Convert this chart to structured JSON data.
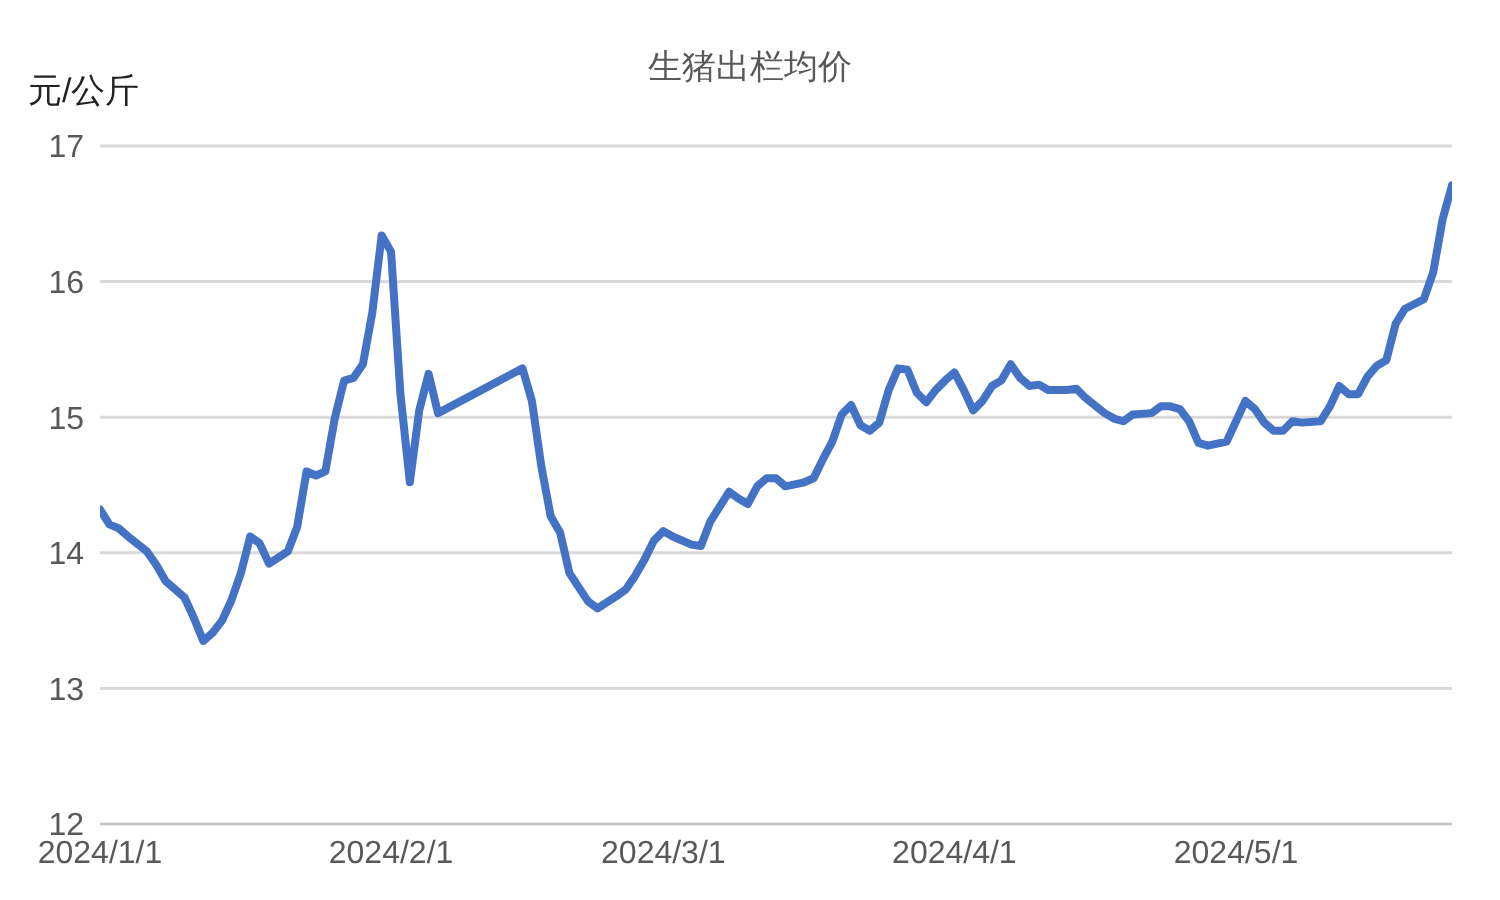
{
  "chart_data": {
    "type": "line",
    "title": "生猪出栏均价",
    "ylabel": "元/公斤",
    "x": [
      "2024-01-01",
      "2024-01-02",
      "2024-01-03",
      "2024-01-04",
      "2024-01-06",
      "2024-01-07",
      "2024-01-08",
      "2024-01-10",
      "2024-01-11",
      "2024-01-12",
      "2024-01-13",
      "2024-01-14",
      "2024-01-15",
      "2024-01-16",
      "2024-01-17",
      "2024-01-18",
      "2024-01-19",
      "2024-01-21",
      "2024-01-22",
      "2024-01-23",
      "2024-01-24",
      "2024-01-25",
      "2024-01-26",
      "2024-01-27",
      "2024-01-28",
      "2024-01-29",
      "2024-01-30",
      "2024-01-31",
      "2024-02-01",
      "2024-02-02",
      "2024-02-03",
      "2024-02-04",
      "2024-02-05",
      "2024-02-06",
      "2024-02-15",
      "2024-02-16",
      "2024-02-17",
      "2024-02-18",
      "2024-02-19",
      "2024-02-20",
      "2024-02-22",
      "2024-02-23",
      "2024-02-25",
      "2024-02-26",
      "2024-02-27",
      "2024-02-28",
      "2024-02-29",
      "2024-03-01",
      "2024-03-02",
      "2024-03-04",
      "2024-03-05",
      "2024-03-06",
      "2024-03-07",
      "2024-03-08",
      "2024-03-09",
      "2024-03-10",
      "2024-03-11",
      "2024-03-12",
      "2024-03-13",
      "2024-03-14",
      "2024-03-16",
      "2024-03-17",
      "2024-03-18",
      "2024-03-19",
      "2024-03-20",
      "2024-03-21",
      "2024-03-22",
      "2024-03-23",
      "2024-03-24",
      "2024-03-25",
      "2024-03-26",
      "2024-03-27",
      "2024-03-28",
      "2024-03-29",
      "2024-03-30",
      "2024-03-31",
      "2024-04-01",
      "2024-04-02",
      "2024-04-03",
      "2024-04-04",
      "2024-04-05",
      "2024-04-06",
      "2024-04-07",
      "2024-04-08",
      "2024-04-09",
      "2024-04-10",
      "2024-04-11",
      "2024-04-13",
      "2024-04-14",
      "2024-04-15",
      "2024-04-17",
      "2024-04-18",
      "2024-04-19",
      "2024-04-20",
      "2024-04-22",
      "2024-04-23",
      "2024-04-24",
      "2024-04-25",
      "2024-04-26",
      "2024-04-27",
      "2024-04-28",
      "2024-04-30",
      "2024-05-01",
      "2024-05-02",
      "2024-05-03",
      "2024-05-04",
      "2024-05-05",
      "2024-05-06",
      "2024-05-07",
      "2024-05-08",
      "2024-05-10",
      "2024-05-11",
      "2024-05-12",
      "2024-05-13",
      "2024-05-14",
      "2024-05-15",
      "2024-05-16",
      "2024-05-17",
      "2024-05-18",
      "2024-05-19",
      "2024-05-21",
      "2024-05-22",
      "2024-05-23",
      "2024-05-24"
    ],
    "series": [
      {
        "color": "#4472c4",
        "values": [
          14.32,
          14.21,
          14.18,
          14.12,
          14.01,
          13.91,
          13.79,
          13.67,
          13.52,
          13.35,
          13.41,
          13.5,
          13.65,
          13.85,
          14.12,
          14.07,
          13.92,
          14.01,
          14.19,
          14.6,
          14.57,
          14.6,
          14.99,
          15.27,
          15.29,
          15.39,
          15.77,
          16.34,
          16.22,
          15.17,
          14.52,
          15.05,
          15.32,
          15.03,
          15.36,
          15.12,
          14.64,
          14.27,
          14.15,
          13.85,
          13.64,
          13.59,
          13.68,
          13.73,
          13.83,
          13.95,
          14.09,
          14.16,
          14.12,
          14.06,
          14.05,
          14.23,
          14.34,
          14.45,
          14.4,
          14.36,
          14.49,
          14.55,
          14.55,
          14.49,
          14.52,
          14.55,
          14.69,
          14.82,
          15.02,
          15.09,
          14.94,
          14.9,
          14.96,
          15.2,
          15.36,
          15.35,
          15.18,
          15.11,
          15.2,
          15.27,
          15.33,
          15.2,
          15.05,
          15.12,
          15.23,
          15.27,
          15.39,
          15.29,
          15.23,
          15.24,
          15.2,
          15.2,
          15.21,
          15.14,
          15.03,
          14.99,
          14.97,
          15.02,
          15.03,
          15.08,
          15.08,
          15.06,
          14.97,
          14.81,
          14.79,
          14.82,
          14.97,
          15.12,
          15.06,
          14.96,
          14.9,
          14.9,
          14.97,
          14.96,
          14.97,
          15.08,
          15.23,
          15.17,
          15.17,
          15.3,
          15.38,
          15.42,
          15.69,
          15.8,
          15.87,
          16.07,
          16.46,
          16.71
        ]
      }
    ],
    "xlim": [
      "2024-01-01",
      "2024-05-24"
    ],
    "xticks": [
      {
        "value": "2024-01-01",
        "label": "2024/1/1"
      },
      {
        "value": "2024-02-01",
        "label": "2024/2/1"
      },
      {
        "value": "2024-03-01",
        "label": "2024/3/1"
      },
      {
        "value": "2024-04-01",
        "label": "2024/4/1"
      },
      {
        "value": "2024-05-01",
        "label": "2024/5/1"
      }
    ],
    "ylim": [
      12,
      17
    ],
    "yticks": [
      12,
      13,
      14,
      15,
      16,
      17
    ],
    "grid": "y",
    "legend": false
  }
}
